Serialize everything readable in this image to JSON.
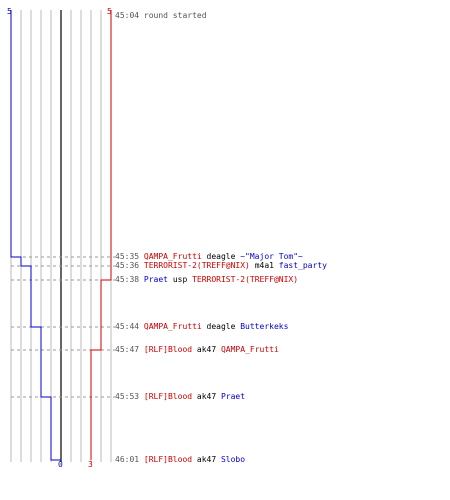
{
  "counts": {
    "top_blue": "5",
    "top_red": "5",
    "bottom_blue": "0",
    "bottom_red": "3"
  },
  "colors": {
    "team_a": "#0000cc",
    "team_b": "#cc0000",
    "grid": "#bbbbbb",
    "center": "#333333",
    "dashes": "#999999"
  },
  "events": [
    {
      "time": "45:04",
      "note": "round started"
    },
    {
      "time": "45:35",
      "killer": "QAMPA_Frutti",
      "killer_team": "red",
      "weapon": "deagle",
      "victim": "~\"Major Tom\"~",
      "victim_team": "blue"
    },
    {
      "time": "45:36",
      "killer": "TERRORIST-2(TREFF@NIX)",
      "killer_team": "red",
      "weapon": "m4a1",
      "victim": "fast_party",
      "victim_team": "blue"
    },
    {
      "time": "45:38",
      "killer": "Praet",
      "killer_team": "blue",
      "weapon": "usp",
      "victim": "TERRORIST-2(TREFF@NIX)",
      "victim_team": "red"
    },
    {
      "time": "45:44",
      "killer": "QAMPA_Frutti",
      "killer_team": "red",
      "weapon": "deagle",
      "victim": "Butterkeks",
      "victim_team": "blue"
    },
    {
      "time": "45:47",
      "killer": "[RLF]Blood",
      "killer_team": "red",
      "weapon": "ak47",
      "victim": "QAMPA_Frutti",
      "victim_team": "red"
    },
    {
      "time": "45:53",
      "killer": "[RLF]Blood",
      "killer_team": "red",
      "weapon": "ak47",
      "victim": "Praet",
      "victim_team": "blue"
    },
    {
      "time": "46:01",
      "killer": "[RLF]Blood",
      "killer_team": "red",
      "weapon": "ak47",
      "victim": "Slobo",
      "victim_team": "blue"
    }
  ]
}
